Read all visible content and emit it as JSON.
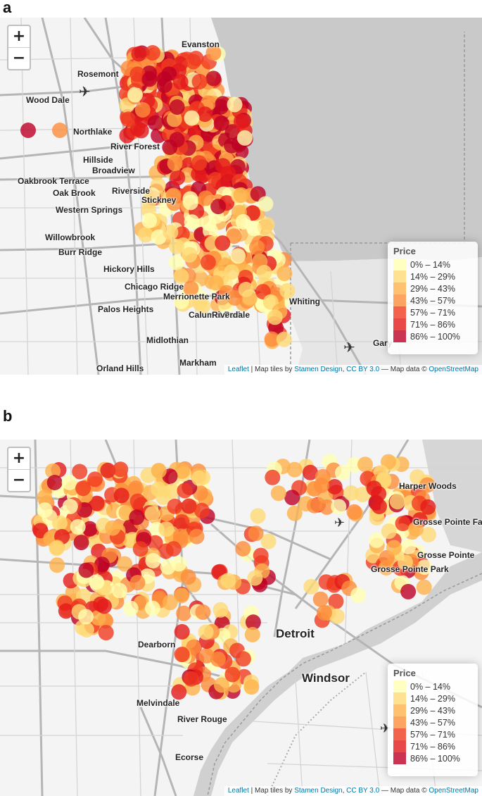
{
  "panels": [
    {
      "letter": "a",
      "zoom_in": "+",
      "zoom_out": "−",
      "legend": {
        "title": "Price",
        "bins": [
          "0% – 14%",
          "14% – 29%",
          "29% – 43%",
          "43% – 57%",
          "57% – 71%",
          "71% – 86%",
          "86% – 100%"
        ],
        "colors": [
          "#ffffb2",
          "#fed976",
          "#feb24c",
          "#fd8d3c",
          "#f03b20",
          "#e31a1c",
          "#bd0026"
        ]
      },
      "attribution": {
        "leaflet": "Leaflet",
        "text1": " | Map tiles by ",
        "stamen": "Stamen Design",
        "sep": ", ",
        "cc": "CC BY 3.0",
        "text2": " — Map data © ",
        "osm": "OpenStreetMap"
      },
      "places": [
        "Evanston",
        "Rosemont",
        "Wood Dale",
        "Northlake",
        "River Forest",
        "Hillside",
        "Broadview",
        "Oakbrook Terrace",
        "Oak Brook",
        "Riverside",
        "Stickney",
        "Western Springs",
        "Willowbrook",
        "Burr Ridge",
        "Hickory Hills",
        "Chicago Ridge",
        "Palos Heights",
        "Merrionette Park",
        "Calumet Park",
        "Riverdale",
        "Midlothian",
        "Whiting",
        "Gary",
        "Orland Hills",
        "Markham"
      ]
    },
    {
      "letter": "b",
      "zoom_in": "+",
      "zoom_out": "−",
      "legend": {
        "title": "Price",
        "bins": [
          "0% – 14%",
          "14% – 29%",
          "29% – 43%",
          "43% – 57%",
          "57% – 71%",
          "71% – 86%",
          "86% – 100%"
        ],
        "colors": [
          "#ffffb2",
          "#fed976",
          "#feb24c",
          "#fd8d3c",
          "#f03b20",
          "#e31a1c",
          "#bd0026"
        ]
      },
      "attribution": {
        "leaflet": "Leaflet",
        "text1": " | Map tiles by ",
        "stamen": "Stamen Design",
        "sep": ", ",
        "cc": "CC BY 3.0",
        "text2": " — Map data © ",
        "osm": "OpenStreetMap"
      },
      "places": [
        "Harper Woods",
        "Grosse Pointe Farms",
        "Grosse Pointe",
        "Grosse Pointe Park",
        "Detroit",
        "Windsor",
        "Dearborn",
        "Melvindale",
        "River Rouge",
        "Ecorse"
      ]
    }
  ]
}
